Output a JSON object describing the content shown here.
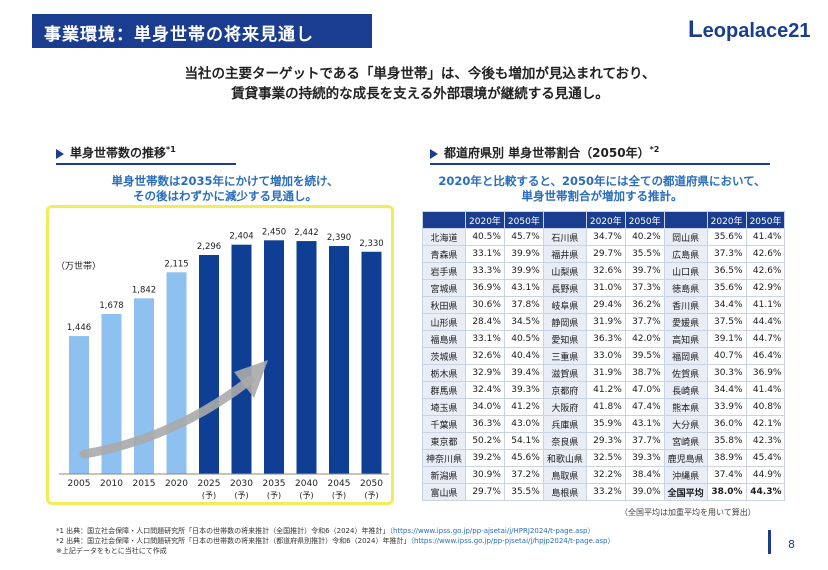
{
  "header": {
    "title": "事業環境：単身世帯の将来見通し",
    "logo_prefix": "L",
    "logo_rest": "eopalace",
    "logo_suffix": "21"
  },
  "intro": {
    "line1": "当社の主要ターゲットである「単身世帯」は、今後も増加が見込まれており、",
    "line2": "賃貸事業の持続的な成長を支える外部環境が継続する見通し。"
  },
  "left": {
    "heading": "単身世帯数の推移",
    "heading_note": "*1",
    "sub1": "単身世帯数は2035年にかけて増加を続け、",
    "sub2": "その後はわずかに減少する見通し。"
  },
  "right": {
    "heading": "都道府県別 単身世帯割合（2050年）",
    "heading_note": "*2",
    "sub1": "2020年と比較すると、2050年には全ての都道府県において、",
    "sub2": "単身世帯割合が増加する推計。",
    "col_2020": "2020年",
    "col_2050": "2050年",
    "note": "（全国平均は加重平均を用いて算出）",
    "rows": [
      [
        [
          "北海道",
          "40.5%",
          "45.7%"
        ],
        [
          "石川県",
          "34.7%",
          "40.2%"
        ],
        [
          "岡山県",
          "35.6%",
          "41.4%"
        ]
      ],
      [
        [
          "青森県",
          "33.1%",
          "39.9%"
        ],
        [
          "福井県",
          "29.7%",
          "35.5%"
        ],
        [
          "広島県",
          "37.3%",
          "42.6%"
        ]
      ],
      [
        [
          "岩手県",
          "33.3%",
          "39.9%"
        ],
        [
          "山梨県",
          "32.6%",
          "39.7%"
        ],
        [
          "山口県",
          "36.5%",
          "42.6%"
        ]
      ],
      [
        [
          "宮城県",
          "36.9%",
          "43.1%"
        ],
        [
          "長野県",
          "31.0%",
          "37.3%"
        ],
        [
          "徳島県",
          "35.6%",
          "42.9%"
        ]
      ],
      [
        [
          "秋田県",
          "30.6%",
          "37.8%"
        ],
        [
          "岐阜県",
          "29.4%",
          "36.2%"
        ],
        [
          "香川県",
          "34.4%",
          "41.1%"
        ]
      ],
      [
        [
          "山形県",
          "28.4%",
          "34.5%"
        ],
        [
          "静岡県",
          "31.9%",
          "37.7%"
        ],
        [
          "愛媛県",
          "37.5%",
          "44.4%"
        ]
      ],
      [
        [
          "福島県",
          "33.1%",
          "40.5%"
        ],
        [
          "愛知県",
          "36.3%",
          "42.0%"
        ],
        [
          "高知県",
          "39.1%",
          "44.7%"
        ]
      ],
      [
        [
          "茨城県",
          "32.6%",
          "40.4%"
        ],
        [
          "三重県",
          "33.0%",
          "39.5%"
        ],
        [
          "福岡県",
          "40.7%",
          "46.4%"
        ]
      ],
      [
        [
          "栃木県",
          "32.9%",
          "39.4%"
        ],
        [
          "滋賀県",
          "31.9%",
          "38.7%"
        ],
        [
          "佐賀県",
          "30.3%",
          "36.9%"
        ]
      ],
      [
        [
          "群馬県",
          "32.4%",
          "39.3%"
        ],
        [
          "京都府",
          "41.2%",
          "47.0%"
        ],
        [
          "長崎県",
          "34.4%",
          "41.4%"
        ]
      ],
      [
        [
          "埼玉県",
          "34.0%",
          "41.2%"
        ],
        [
          "大阪府",
          "41.8%",
          "47.4%"
        ],
        [
          "熊本県",
          "33.9%",
          "40.8%"
        ]
      ],
      [
        [
          "千葉県",
          "36.3%",
          "43.0%"
        ],
        [
          "兵庫県",
          "35.9%",
          "43.1%"
        ],
        [
          "大分県",
          "36.0%",
          "42.1%"
        ]
      ],
      [
        [
          "東京都",
          "50.2%",
          "54.1%"
        ],
        [
          "奈良県",
          "29.3%",
          "37.7%"
        ],
        [
          "宮崎県",
          "35.8%",
          "42.3%"
        ]
      ],
      [
        [
          "神奈川県",
          "39.2%",
          "45.6%"
        ],
        [
          "和歌山県",
          "32.5%",
          "39.3%"
        ],
        [
          "鹿児島県",
          "38.9%",
          "45.4%"
        ]
      ],
      [
        [
          "新潟県",
          "30.9%",
          "37.2%"
        ],
        [
          "鳥取県",
          "32.2%",
          "38.4%"
        ],
        [
          "沖縄県",
          "37.4%",
          "44.9%"
        ]
      ],
      [
        [
          "富山県",
          "29.7%",
          "35.5%"
        ],
        [
          "島根県",
          "33.2%",
          "39.0%"
        ],
        [
          "全国平均",
          "38.0%",
          "44.3%"
        ]
      ]
    ]
  },
  "chart_data": {
    "type": "bar",
    "title": "単身世帯数の推移",
    "ylabel": "（万世帯）",
    "categories": [
      "2005",
      "2010",
      "2015",
      "2020",
      "2025",
      "2030",
      "2035",
      "2040",
      "2045",
      "2050"
    ],
    "forecast_label": "(予)",
    "forecast_from_index": 4,
    "values": [
      1446,
      1678,
      1842,
      2115,
      2296,
      2404,
      2450,
      2442,
      2390,
      2330
    ],
    "value_labels": [
      "1,446",
      "1,678",
      "1,842",
      "2,115",
      "2,296",
      "2,404",
      "2,450",
      "2,442",
      "2,390",
      "2,330"
    ],
    "ylim": [
      0,
      2600
    ],
    "colors": {
      "actual": "#8ec0f0",
      "forecast": "#0f3f94",
      "arrow": "#aaaaaa"
    }
  },
  "footnotes": {
    "f1": "*1 出典：国立社会保障・人口問題研究所「日本の世帯数の将来推計（全国推計）令和6（2024）年推計」",
    "f1_link": "（https://www.ipss.go.jp/pp-ajsetai/j/HPRJ2024/t-page.asp）",
    "f2": "*2 出典：国立社会保障・人口問題研究所「日本の世帯数の将来推計（都道府県別推計）令和6（2024）年推計」",
    "f2_link": "（https://www.ipss.go.jp/pp-pjsetai/j/hpjp2024/t-page.asp）",
    "f3": "※上記データをもとに当社にて作成"
  },
  "page_number": "8"
}
